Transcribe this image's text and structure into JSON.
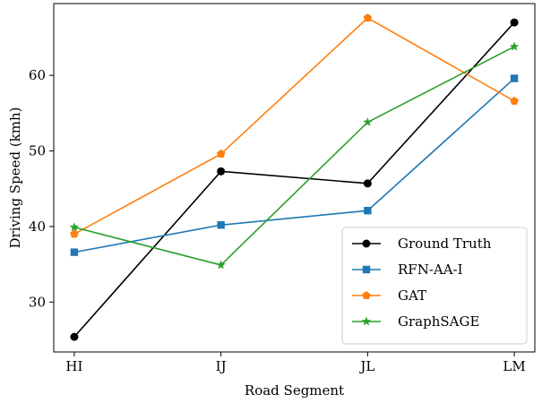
{
  "chart_data": {
    "type": "line",
    "title": "",
    "xlabel": "Road Segment",
    "ylabel": "Driving Speed (kmh)",
    "categories": [
      "HI",
      "IJ",
      "JL",
      "LM"
    ],
    "ylim": [
      23.4,
      69.5
    ],
    "yticks": [
      "30",
      "40",
      "50",
      "60"
    ],
    "grid": false,
    "legend_position": "lower right",
    "series": [
      {
        "name": "Ground Truth",
        "values": [
          25.4,
          47.3,
          45.7,
          67.0
        ],
        "color": "#000000",
        "marker": "circle"
      },
      {
        "name": "RFN-AA-I",
        "values": [
          36.6,
          40.2,
          42.1,
          59.6
        ],
        "color": "#1f77b4",
        "marker": "square"
      },
      {
        "name": "GAT",
        "values": [
          39.0,
          49.6,
          67.6,
          56.6
        ],
        "color": "#ff7f0e",
        "marker": "pentagon"
      },
      {
        "name": "GraphSAGE",
        "values": [
          39.9,
          34.9,
          53.8,
          63.8
        ],
        "color": "#2ca02c",
        "marker": "star"
      }
    ]
  }
}
